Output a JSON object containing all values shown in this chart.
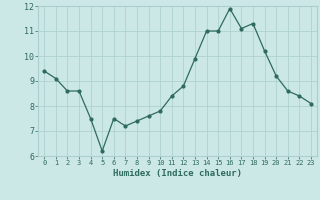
{
  "x": [
    0,
    1,
    2,
    3,
    4,
    5,
    6,
    7,
    8,
    9,
    10,
    11,
    12,
    13,
    14,
    15,
    16,
    17,
    18,
    19,
    20,
    21,
    22,
    23
  ],
  "y": [
    9.4,
    9.1,
    8.6,
    8.6,
    7.5,
    6.2,
    7.5,
    7.2,
    7.4,
    7.6,
    7.8,
    8.4,
    8.8,
    9.9,
    11.0,
    11.0,
    11.9,
    11.1,
    11.3,
    10.2,
    9.2,
    8.6,
    8.4,
    8.1
  ],
  "line_color": "#2e6b5e",
  "bg_color": "#cce8e6",
  "grid_color": "#aacfcc",
  "xlabel": "Humidex (Indice chaleur)",
  "xlim": [
    -0.5,
    23.5
  ],
  "ylim": [
    6,
    12
  ],
  "yticks": [
    6,
    7,
    8,
    9,
    10,
    11,
    12
  ],
  "xticks": [
    0,
    1,
    2,
    3,
    4,
    5,
    6,
    7,
    8,
    9,
    10,
    11,
    12,
    13,
    14,
    15,
    16,
    17,
    18,
    19,
    20,
    21,
    22,
    23
  ]
}
